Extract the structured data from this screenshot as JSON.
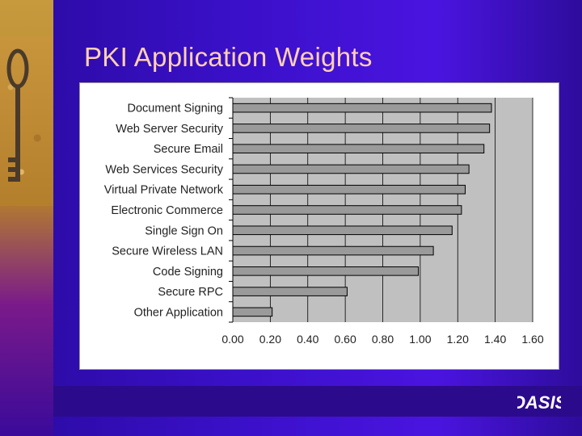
{
  "slide": {
    "title": "PKI Application Weights"
  },
  "colors": {
    "background": "#3a10c8",
    "title": "#ffd0b0",
    "plot_area": "#c0c0c0",
    "bar_fill": "#9a9a9a",
    "bar_stroke": "#000000"
  },
  "logo": {
    "icon": "oasis-logo-icon",
    "text": "OASIS"
  },
  "chart_data": {
    "type": "bar",
    "orientation": "horizontal",
    "title": "",
    "xlabel": "",
    "ylabel": "",
    "categories": [
      "Document Signing",
      "Web Server Security",
      "Secure Email",
      "Web Services Security",
      "Virtual Private Network",
      "Electronic Commerce",
      "Single Sign On",
      "Secure Wireless LAN",
      "Code Signing",
      "Secure RPC",
      "Other Application"
    ],
    "values": [
      1.38,
      1.37,
      1.34,
      1.26,
      1.24,
      1.22,
      1.17,
      1.07,
      0.99,
      0.61,
      0.21
    ],
    "xlim": [
      0,
      1.6
    ],
    "xticks": [
      "0.00",
      "0.20",
      "0.40",
      "0.60",
      "0.80",
      "1.00",
      "1.20",
      "1.40",
      "1.60"
    ],
    "grid": "vertical",
    "legend": "none"
  }
}
